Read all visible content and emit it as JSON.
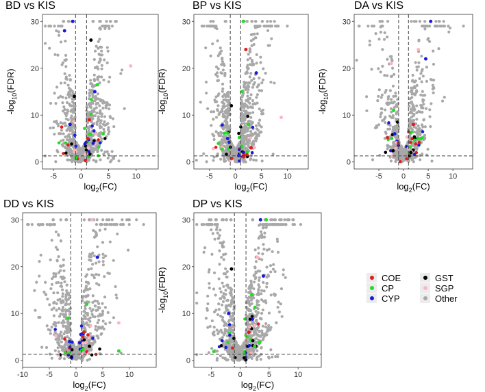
{
  "figure": {
    "panel_count": 5
  },
  "colors": {
    "COE": "#e41a1c",
    "CP": "#22dd22",
    "CYP": "#1a1adc",
    "GST": "#000000",
    "SGP": "#ffb6c1",
    "Other": "#a8a8a8",
    "threshold_line": "#444444",
    "panel_border": "#333333"
  },
  "legend": {
    "position": "right-middle",
    "items": [
      {
        "key": "COE",
        "label": "COE"
      },
      {
        "key": "CP",
        "label": "CP"
      },
      {
        "key": "CYP",
        "label": "CYP"
      },
      {
        "key": "GST",
        "label": "GST"
      },
      {
        "key": "SGP",
        "label": "SGP"
      },
      {
        "key": "Other",
        "label": "Other"
      }
    ]
  },
  "chart_data": [
    {
      "type": "scatter",
      "title": "BD vs KIS",
      "xlabel": {
        "pre": "log",
        "sub": "2",
        "post": "(FC)"
      },
      "ylabel": {
        "pre": "-log",
        "sub": "10",
        "post": "(FDR)"
      },
      "xlim": [
        -7,
        14
      ],
      "ylim": [
        -1.5,
        31.5
      ],
      "xticks": [
        -5,
        0,
        5,
        10
      ],
      "yticks": [
        0,
        10,
        20,
        30
      ],
      "grid": false,
      "thresholds": {
        "x": [
          -1,
          1
        ],
        "y": 1.3
      },
      "cap": 30,
      "spread": {
        "neg": 4.5,
        "pos": 5.0,
        "neg_sig": 2.0,
        "pos_sig": 2.6,
        "density": 1.25,
        "cap_neg": 5,
        "cap_pos": 10
      },
      "highlight": [
        {
          "x": -3.0,
          "y": 28,
          "cat": "CYP"
        },
        {
          "x": -1.5,
          "y": 30,
          "cat": "CYP"
        },
        {
          "x": 2.5,
          "y": 15,
          "cat": "CYP"
        },
        {
          "x": 1.8,
          "y": 26,
          "cat": "GST"
        },
        {
          "x": 9.0,
          "y": 20.5,
          "cat": "SGP"
        },
        {
          "x": 3.0,
          "y": 16.5,
          "cat": "CP"
        },
        {
          "x": -2.0,
          "y": 8,
          "cat": "CYP"
        },
        {
          "x": 1.5,
          "y": 9,
          "cat": "COE"
        },
        {
          "x": 4.0,
          "y": 6,
          "cat": "CP"
        },
        {
          "x": -1.2,
          "y": 14,
          "cat": "GST"
        },
        {
          "x": 1.2,
          "y": 5,
          "cat": "COE"
        },
        {
          "x": 2.2,
          "y": 4,
          "cat": "CYP"
        }
      ]
    },
    {
      "type": "scatter",
      "title": "BP vs KIS",
      "xlabel": {
        "pre": "log",
        "sub": "2",
        "post": "(FC)"
      },
      "ylabel": {
        "pre": "-log",
        "sub": "10",
        "post": "(FDR)"
      },
      "xlim": [
        -8,
        14
      ],
      "ylim": [
        -1.5,
        31.5
      ],
      "xticks": [
        -5,
        0,
        5,
        10
      ],
      "yticks": [
        0,
        10,
        20,
        30
      ],
      "grid": false,
      "thresholds": {
        "x": [
          -1,
          1
        ],
        "y": 1.3
      },
      "cap": 30,
      "spread": {
        "neg": 5.5,
        "pos": 6.0,
        "neg_sig": 2.2,
        "pos_sig": 2.8,
        "density": 1.2,
        "cap_neg": 4,
        "cap_pos": 12
      },
      "highlight": [
        {
          "x": 2.0,
          "y": 24,
          "cat": "COE"
        },
        {
          "x": 4.0,
          "y": 19,
          "cat": "CYP"
        },
        {
          "x": 8.8,
          "y": 9.5,
          "cat": "SGP"
        },
        {
          "x": 1.5,
          "y": 30,
          "cat": "CP"
        },
        {
          "x": -0.8,
          "y": 12,
          "cat": "GST"
        },
        {
          "x": 2.5,
          "y": 8,
          "cat": "CP"
        },
        {
          "x": -1.5,
          "y": 5,
          "cat": "CYP"
        },
        {
          "x": 3.0,
          "y": 3,
          "cat": "COE"
        },
        {
          "x": 1.2,
          "y": 15,
          "cat": "CP"
        }
      ]
    },
    {
      "type": "scatter",
      "title": "DA vs KIS",
      "xlabel": {
        "pre": "log",
        "sub": "2",
        "post": "(FC)"
      },
      "ylabel": {
        "pre": "-log",
        "sub": "10",
        "post": "(FDR)"
      },
      "xlim": [
        -10,
        14
      ],
      "ylim": [
        -1.5,
        31.5
      ],
      "xticks": [
        -5,
        0,
        5,
        10
      ],
      "yticks": [
        0,
        10,
        20,
        30
      ],
      "grid": false,
      "thresholds": {
        "x": [
          -1,
          1
        ],
        "y": 1.3
      },
      "cap": 30,
      "spread": {
        "neg": 7.0,
        "pos": 7.5,
        "neg_sig": 2.8,
        "pos_sig": 3.0,
        "density": 0.8,
        "cap_neg": 4,
        "cap_pos": 9
      },
      "highlight": [
        {
          "x": 5.5,
          "y": 30,
          "cat": "CYP"
        },
        {
          "x": 4.5,
          "y": 22,
          "cat": "CYP"
        },
        {
          "x": -2.5,
          "y": 21,
          "cat": "SGP"
        },
        {
          "x": 3.0,
          "y": 24,
          "cat": "SGP"
        },
        {
          "x": -2.0,
          "y": 11,
          "cat": "CP"
        },
        {
          "x": 2.0,
          "y": 8,
          "cat": "COE"
        },
        {
          "x": -1.8,
          "y": 6,
          "cat": "CYP"
        },
        {
          "x": 3.5,
          "y": 5,
          "cat": "CP"
        },
        {
          "x": 1.5,
          "y": 2,
          "cat": "GST"
        }
      ]
    },
    {
      "type": "scatter",
      "title": "DD vs KIS",
      "xlabel": {
        "pre": "log",
        "sub": "2",
        "post": "(FC)"
      },
      "ylabel": {
        "pre": "-log",
        "sub": "10",
        "post": "(FDR)"
      },
      "xlim": [
        -10,
        15
      ],
      "ylim": [
        -1.5,
        31.5
      ],
      "xticks": [
        -10,
        -5,
        0,
        5,
        10
      ],
      "yticks": [
        0,
        10,
        20,
        30
      ],
      "grid": false,
      "thresholds": {
        "x": [
          -1,
          1
        ],
        "y": 1.3
      },
      "cap": 30,
      "spread": {
        "neg": 7.5,
        "pos": 9.0,
        "neg_sig": 2.8,
        "pos_sig": 3.2,
        "density": 0.95,
        "cap_neg": 6,
        "cap_pos": 16
      },
      "highlight": [
        {
          "x": 4.0,
          "y": 22,
          "cat": "CYP"
        },
        {
          "x": 3.0,
          "y": 30,
          "cat": "SGP"
        },
        {
          "x": 8.0,
          "y": 8,
          "cat": "SGP"
        },
        {
          "x": -1.5,
          "y": 9,
          "cat": "CP"
        },
        {
          "x": 2.0,
          "y": 12,
          "cat": "CP"
        },
        {
          "x": 8.0,
          "y": 2,
          "cat": "CP"
        },
        {
          "x": 1.5,
          "y": 6,
          "cat": "COE"
        },
        {
          "x": -1.2,
          "y": 4,
          "cat": "CYP"
        },
        {
          "x": 2.5,
          "y": 3,
          "cat": "GST"
        }
      ]
    },
    {
      "type": "scatter",
      "title": "DP vs KIS",
      "xlabel": {
        "pre": "log",
        "sub": "2",
        "post": "(FC)"
      },
      "ylabel": {
        "pre": "-log",
        "sub": "10",
        "post": "(FDR)"
      },
      "xlim": [
        -8,
        14
      ],
      "ylim": [
        -1.5,
        31.5
      ],
      "xticks": [
        -5,
        0,
        5,
        10
      ],
      "yticks": [
        0,
        10,
        20,
        30
      ],
      "grid": false,
      "thresholds": {
        "x": [
          -1,
          1
        ],
        "y": 1.3
      },
      "cap": 30,
      "spread": {
        "neg": 6.5,
        "pos": 7.5,
        "neg_sig": 2.4,
        "pos_sig": 3.0,
        "density": 1.3,
        "cap_neg": 14,
        "cap_pos": 18
      },
      "highlight": [
        {
          "x": -1.5,
          "y": 19.5,
          "cat": "GST"
        },
        {
          "x": 4.5,
          "y": 30,
          "cat": "CP"
        },
        {
          "x": 3.5,
          "y": 30,
          "cat": "CYP"
        },
        {
          "x": 4.0,
          "y": 18,
          "cat": "CYP"
        },
        {
          "x": 2.0,
          "y": 14,
          "cat": "CP"
        },
        {
          "x": -2.0,
          "y": 10,
          "cat": "CYP"
        },
        {
          "x": 1.5,
          "y": 6,
          "cat": "COE"
        },
        {
          "x": 3.0,
          "y": 22,
          "cat": "SGP"
        },
        {
          "x": 2.5,
          "y": 3,
          "cat": "CP"
        }
      ]
    }
  ]
}
